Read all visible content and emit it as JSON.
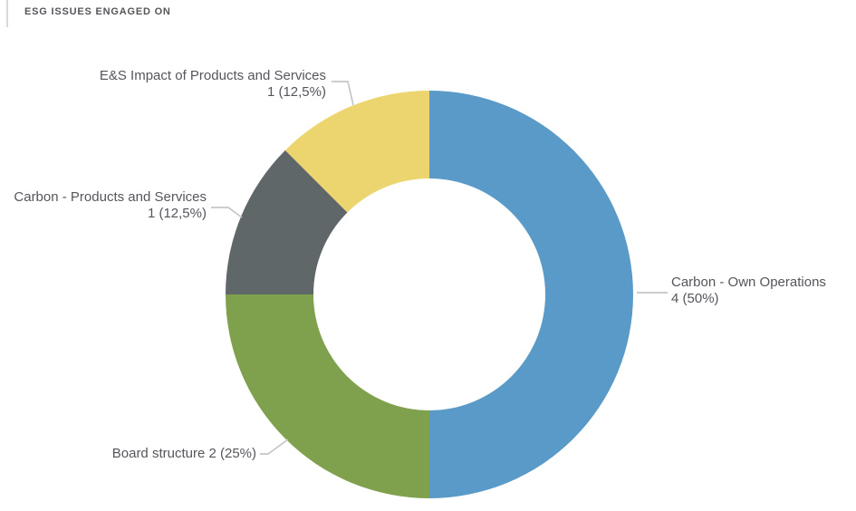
{
  "header": {
    "title": "ESG ISSUES ENGAGED ON"
  },
  "chart_data": {
    "type": "donut",
    "title": "ESG ISSUES ENGAGED ON",
    "segments": [
      {
        "id": "carbon-own-operations",
        "label": "Carbon - Own Operations",
        "value": 4,
        "pct": 50,
        "display": "4 (50%)",
        "color": "#5A9AC8"
      },
      {
        "id": "board-structure",
        "label": "Board structure",
        "value": 2,
        "pct": 25,
        "display": "2 (25%)",
        "color": "#7FA04D"
      },
      {
        "id": "carbon-products-services",
        "label": "Carbon - Products and Services",
        "value": 1,
        "pct": 12.5,
        "display": "1 (12,5%)",
        "color": "#5F6769"
      },
      {
        "id": "es-impact-products-services",
        "label": "E&S Impact of Products and Services",
        "value": 1,
        "pct": 12.5,
        "display": "1 (12,5%)",
        "color": "#ECD46E"
      }
    ],
    "layout_hints": {
      "start_angle_deg": 0,
      "direction": "clockwise",
      "legend": "none",
      "label_style": "outside callouts with leader lines"
    }
  },
  "colors": {
    "background": "#FFFFFF",
    "title_text": "#54565A",
    "label_text": "#54565C",
    "leader_line": "#C6C6C6",
    "accent_bar": "#D9D9D9"
  }
}
